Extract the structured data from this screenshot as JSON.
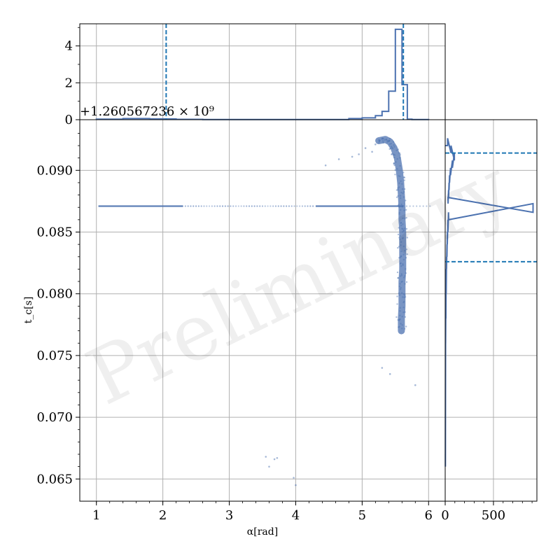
{
  "chart_data": [
    {
      "type": "scatter",
      "panel": "main",
      "xlabel": "α[rad]",
      "ylabel": "t_c[s]",
      "offset_text": "+1.260567236 × 10⁹",
      "watermark": "Preliminary",
      "xlim": [
        0.75,
        6.25
      ],
      "ylim": [
        0.0632,
        0.0941
      ],
      "xticks": [
        1,
        2,
        3,
        4,
        5,
        6
      ],
      "yticks": [
        0.065,
        0.07,
        0.075,
        0.08,
        0.085,
        0.09
      ],
      "ytick_labels": [
        "0.065",
        "0.070",
        "0.075",
        "0.080",
        "0.085",
        "0.090"
      ],
      "grid": true,
      "color": "#4c72b0",
      "horizontal_band": {
        "y": 0.0871,
        "x_start": 1.03,
        "x_end": 5.62
      },
      "curve": [
        [
          5.25,
          0.0924
        ],
        [
          5.35,
          0.0925
        ],
        [
          5.42,
          0.0923
        ],
        [
          5.48,
          0.0918
        ],
        [
          5.53,
          0.091
        ],
        [
          5.56,
          0.09
        ],
        [
          5.58,
          0.089
        ],
        [
          5.59,
          0.088
        ],
        [
          5.6,
          0.087
        ],
        [
          5.6,
          0.086
        ],
        [
          5.61,
          0.085
        ],
        [
          5.61,
          0.084
        ],
        [
          5.61,
          0.083
        ],
        [
          5.61,
          0.082
        ],
        [
          5.6,
          0.081
        ],
        [
          5.6,
          0.08
        ],
        [
          5.6,
          0.079
        ],
        [
          5.59,
          0.078
        ],
        [
          5.59,
          0.077
        ]
      ],
      "outliers": [
        [
          4.45,
          0.0904
        ],
        [
          4.65,
          0.0909
        ],
        [
          4.85,
          0.0911
        ],
        [
          5.05,
          0.0918
        ],
        [
          5.2,
          0.0921
        ],
        [
          5.3,
          0.074
        ],
        [
          5.42,
          0.0735
        ],
        [
          5.8,
          0.0726
        ],
        [
          3.55,
          0.0668
        ],
        [
          3.6,
          0.066
        ],
        [
          3.68,
          0.0666
        ],
        [
          3.72,
          0.0667
        ],
        [
          3.97,
          0.0651
        ],
        [
          4.0,
          0.0645
        ],
        [
          5.15,
          0.0915
        ],
        [
          4.95,
          0.0913
        ]
      ]
    },
    {
      "type": "histogram",
      "panel": "top",
      "variable": "α[rad]",
      "ylim": [
        0,
        5.2
      ],
      "yticks": [
        0,
        2,
        4
      ],
      "ytick_labels": [
        "0",
        "2",
        "4"
      ],
      "bin_edges": [
        1.0,
        1.4,
        1.8,
        2.2,
        2.6,
        3.0,
        3.4,
        3.8,
        4.2,
        4.6,
        4.8,
        5.0,
        5.2,
        5.3,
        5.4,
        5.5,
        5.6,
        5.68,
        5.75,
        6.0
      ],
      "values": [
        0.03,
        0.06,
        0.04,
        0.02,
        0.01,
        0.01,
        0.01,
        0.01,
        0.01,
        0.01,
        0.06,
        0.1,
        0.22,
        0.45,
        1.55,
        4.9,
        1.9,
        0.03,
        0.01
      ],
      "dashed_lines": [
        2.05,
        5.62
      ]
    },
    {
      "type": "histogram",
      "panel": "right",
      "orientation": "horizontal",
      "variable": "t_c[s]",
      "xlim": [
        0,
        950
      ],
      "xticks": [
        0,
        500
      ],
      "xtick_labels": [
        "0",
        "500"
      ],
      "bins": [
        [
          0.092,
          0.0926,
          25
        ],
        [
          0.0914,
          0.092,
          60
        ],
        [
          0.0908,
          0.0914,
          95
        ],
        [
          0.0902,
          0.0908,
          75
        ],
        [
          0.0896,
          0.0902,
          55
        ],
        [
          0.089,
          0.0896,
          45
        ],
        [
          0.0884,
          0.089,
          40
        ],
        [
          0.0878,
          0.0884,
          35
        ],
        [
          0.0873,
          0.0878,
          30
        ],
        [
          0.0866,
          0.0873,
          910
        ],
        [
          0.086,
          0.0866,
          35
        ],
        [
          0.085,
          0.086,
          28
        ],
        [
          0.084,
          0.085,
          22
        ],
        [
          0.083,
          0.084,
          18
        ],
        [
          0.082,
          0.083,
          14
        ],
        [
          0.08,
          0.082,
          10
        ],
        [
          0.078,
          0.08,
          7
        ],
        [
          0.076,
          0.078,
          4
        ],
        [
          0.066,
          0.067,
          2
        ]
      ],
      "dashed_lines": [
        0.0914,
        0.0826
      ]
    }
  ]
}
